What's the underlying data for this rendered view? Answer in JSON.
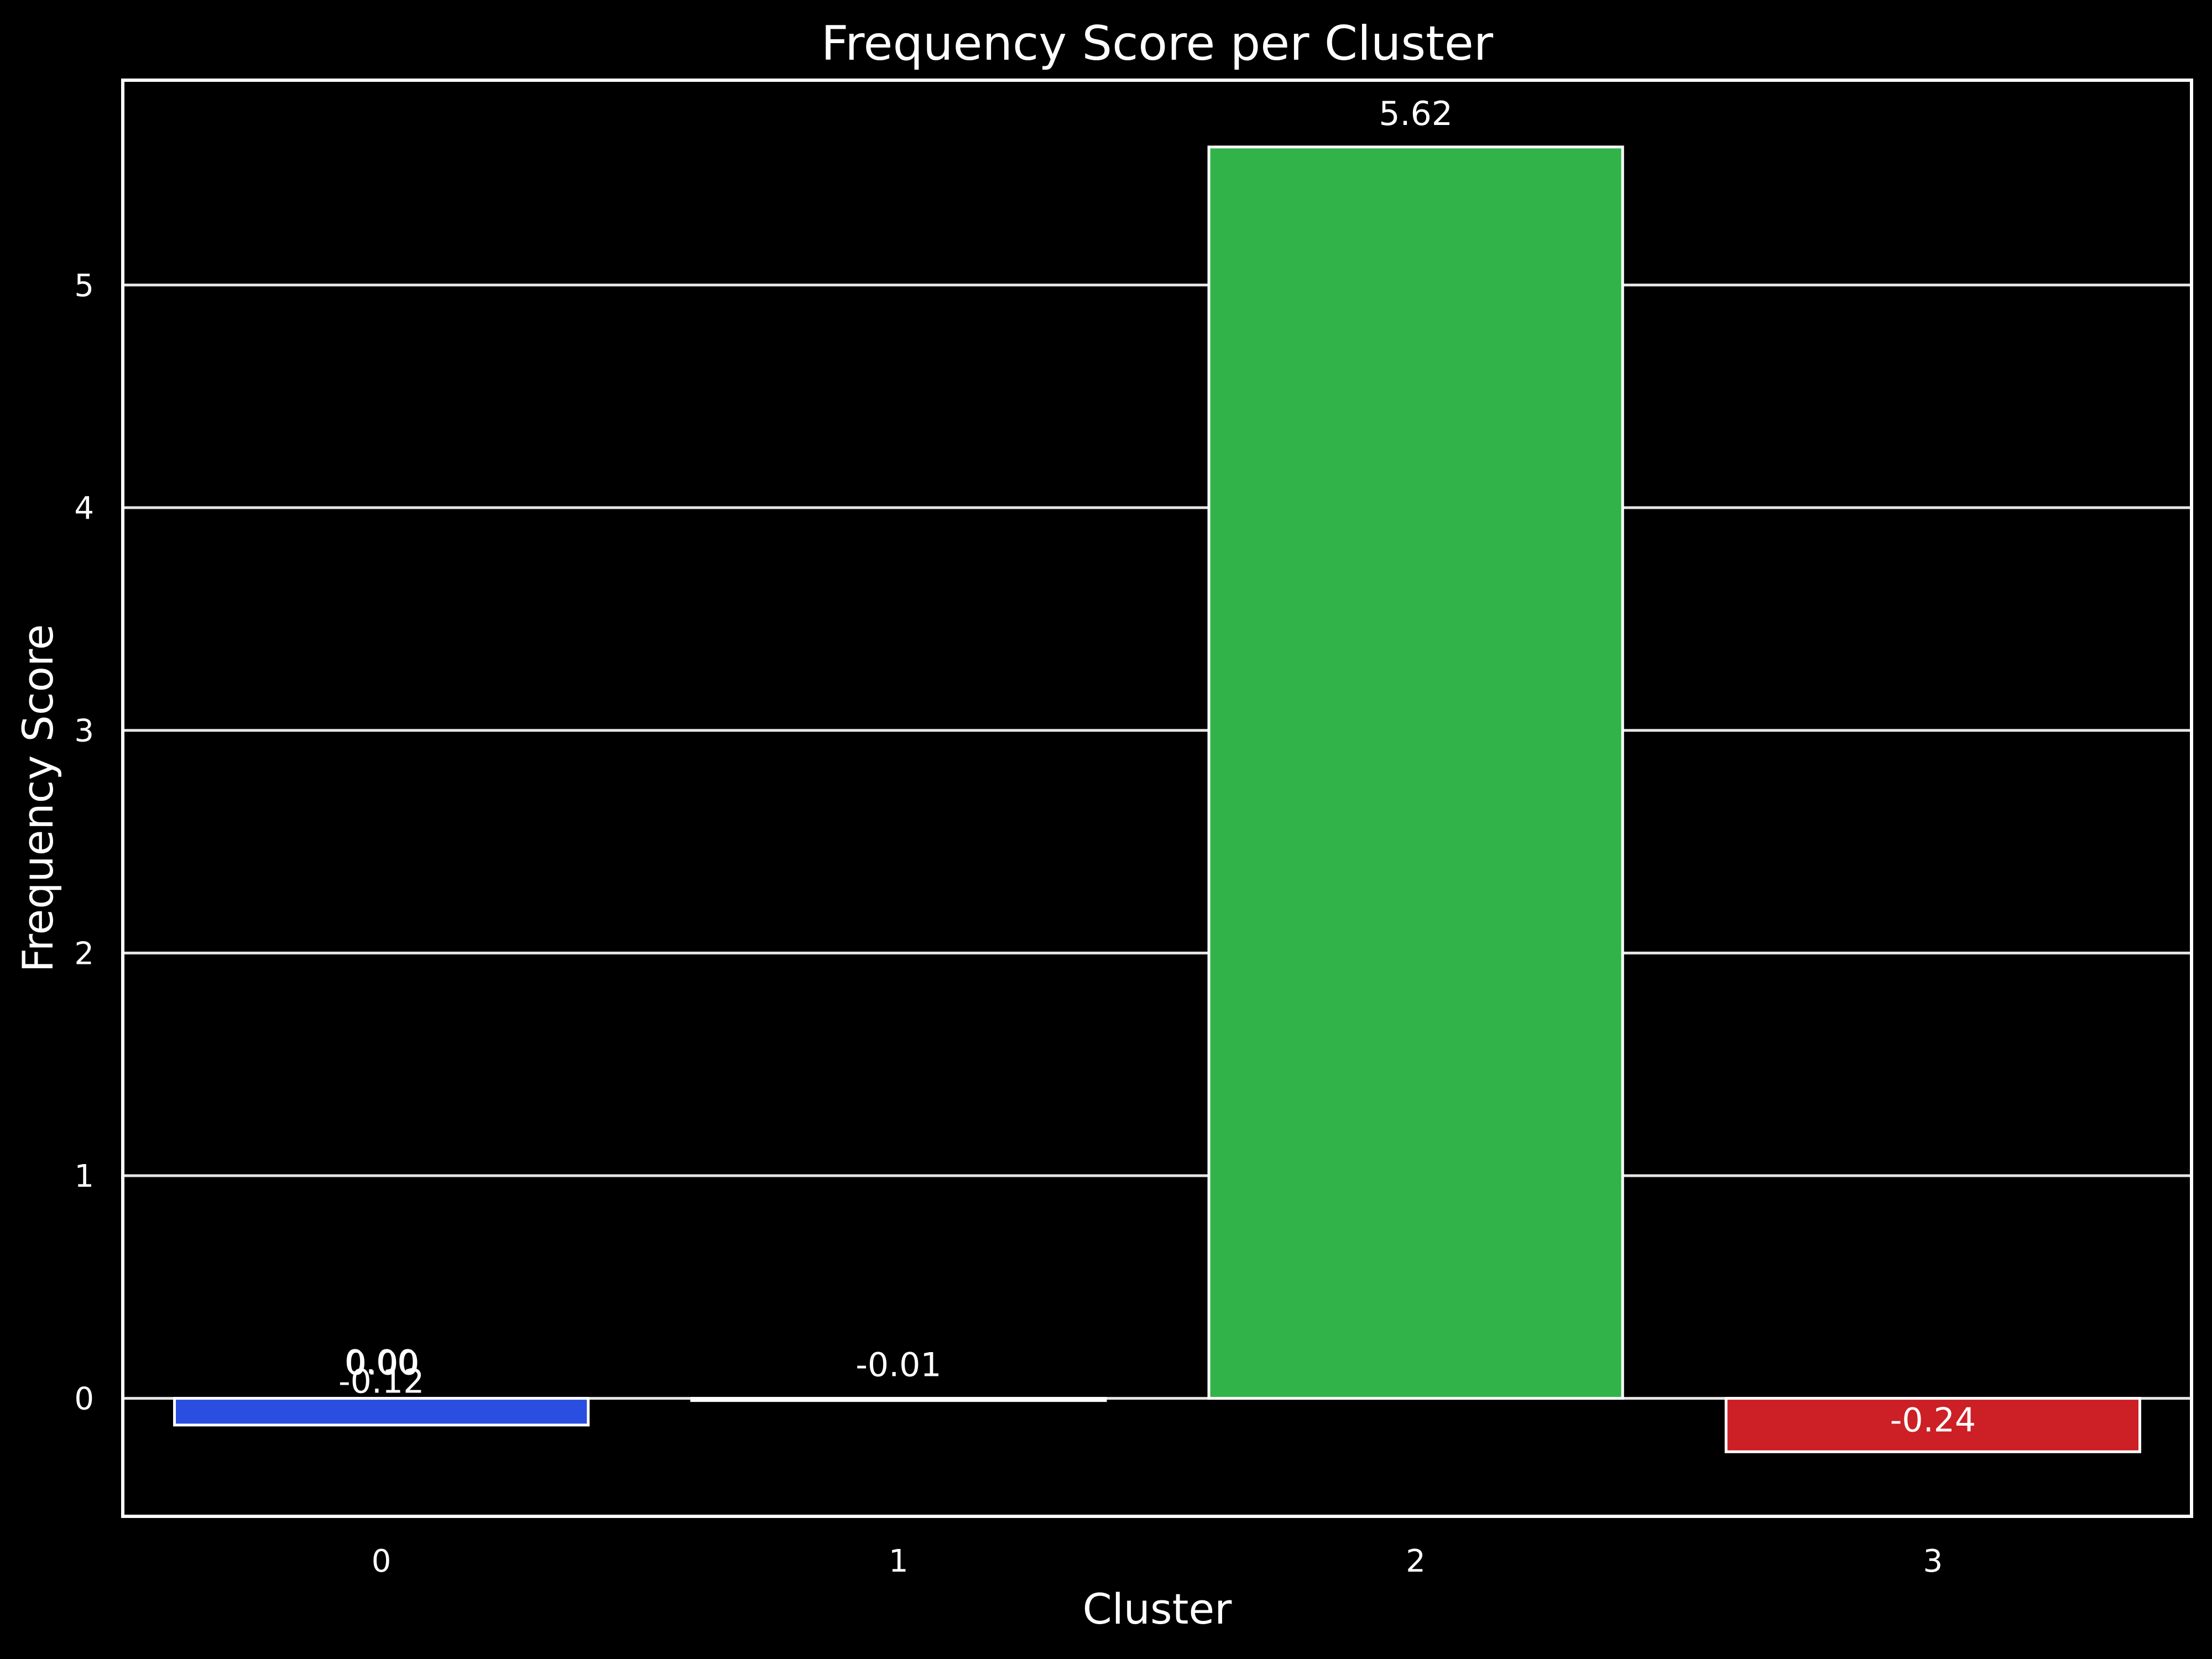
{
  "chart_data": {
    "type": "bar",
    "title": "Frequency Score per Cluster",
    "xlabel": "Cluster",
    "ylabel": "Frequency Score",
    "categories": [
      "0",
      "1",
      "2",
      "3"
    ],
    "values": [
      -0.12,
      -0.01,
      5.62,
      -0.24
    ],
    "bar_labels": [
      "-0.12",
      "-0.01",
      "5.62",
      "-0.24"
    ],
    "extra_labels": [
      "0.00",
      "0.00"
    ],
    "colors": [
      "#2a4fe0",
      "#4c72b0",
      "#32b34a",
      "#cc1f26"
    ],
    "yticks": [
      0,
      1,
      2,
      3,
      4,
      5
    ],
    "ylim": [
      -0.53,
      5.92
    ],
    "grid": true,
    "legend": "none",
    "background": "#000000",
    "text_color": "#ffffff"
  }
}
